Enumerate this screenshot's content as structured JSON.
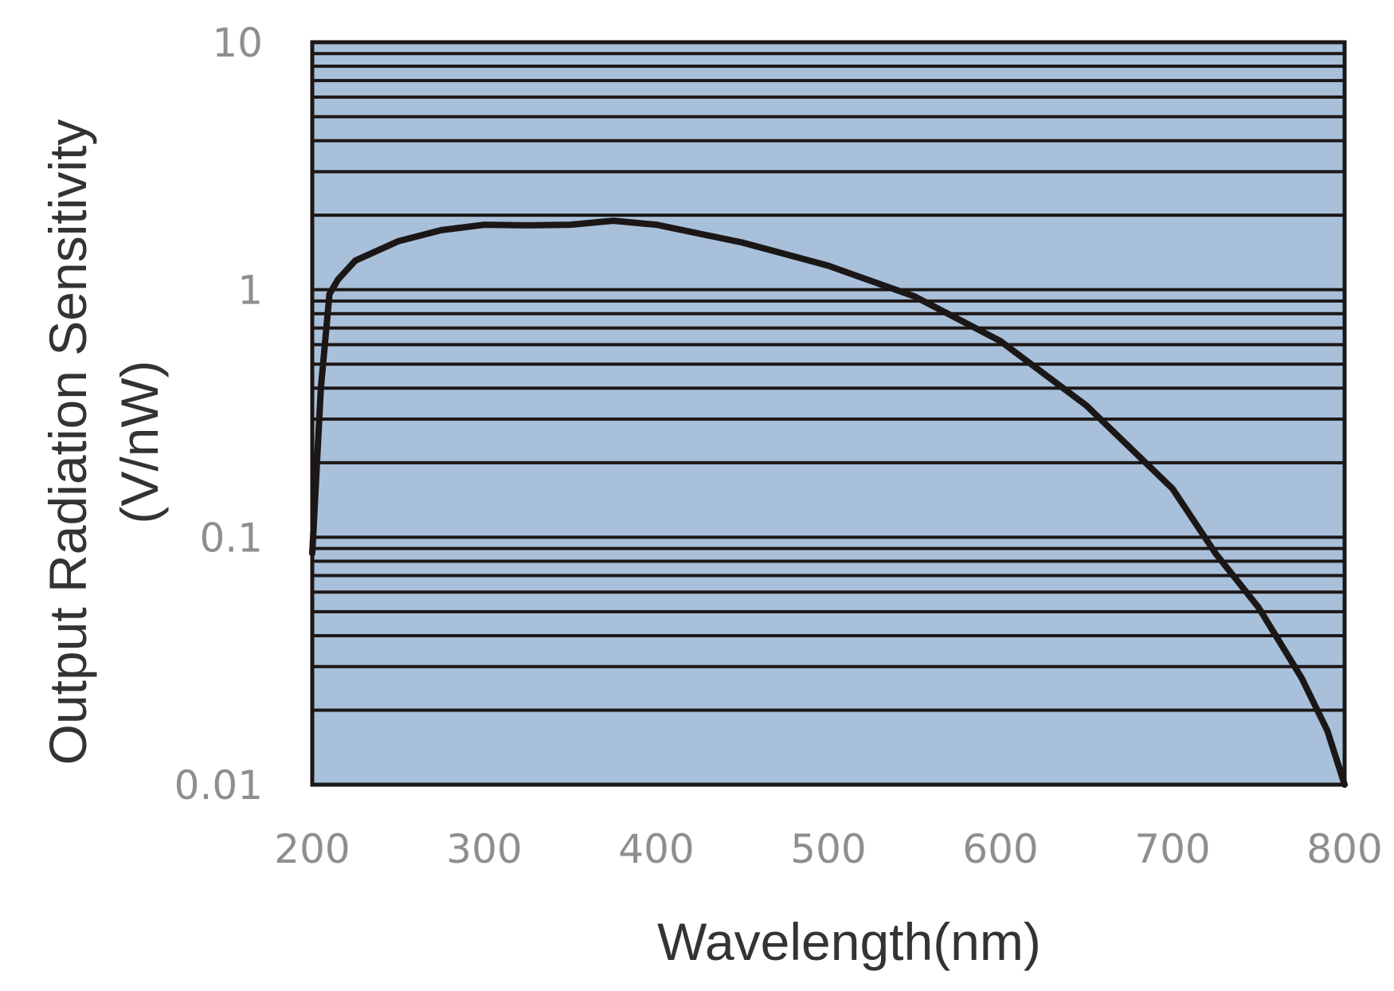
{
  "chart_data": {
    "type": "line",
    "title": "",
    "xlabel": "Wavelength(nm)",
    "ylabel": [
      "Output Radiation Sensitivity",
      "(V/nW)"
    ],
    "xlim": [
      200,
      800
    ],
    "ylim": [
      0.01,
      10
    ],
    "yscale": "log",
    "grid": true,
    "x_ticks": [
      "200",
      "300",
      "400",
      "500",
      "600",
      "700",
      "800"
    ],
    "y_ticks": [
      "0.01",
      "0.1",
      "1",
      "10"
    ],
    "colors": {
      "plot_background": "#a9c0da",
      "line": "#1c1717",
      "grid": "#1c1717",
      "tick_text": "#8e8e8e"
    },
    "series": [
      {
        "x": [
          200,
          205,
          210,
          215,
          225,
          250,
          275,
          300,
          325,
          350,
          375,
          400,
          450,
          500,
          550,
          600,
          650,
          700,
          725,
          750,
          775,
          790,
          800
        ],
        "y": [
          0.086,
          0.4,
          0.96,
          1.1,
          1.31,
          1.57,
          1.74,
          1.83,
          1.82,
          1.83,
          1.9,
          1.83,
          1.55,
          1.25,
          0.94,
          0.62,
          0.34,
          0.157,
          0.086,
          0.052,
          0.027,
          0.0165,
          0.01
        ]
      }
    ]
  }
}
